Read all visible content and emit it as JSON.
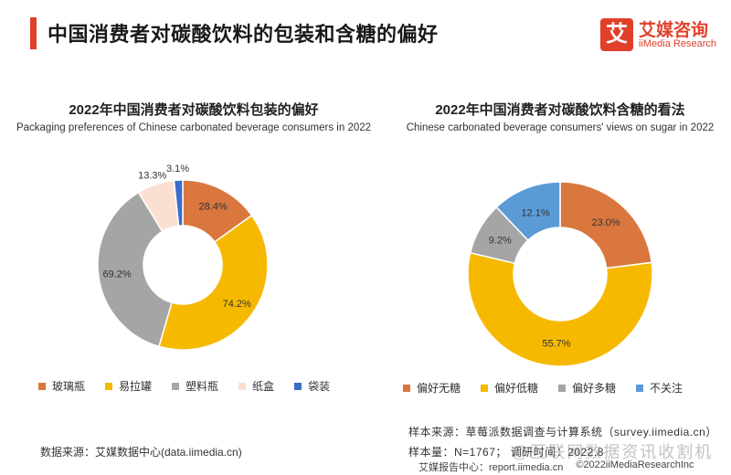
{
  "header": {
    "title": "中国消费者对碳酸饮料的包装和含糖的偏好",
    "brand_icon": "艾",
    "brand_cn": "艾媒咨询",
    "brand_en": "iiMedia Research"
  },
  "chart_data": [
    {
      "type": "pie",
      "title": "2022年中国消费者对碳酸饮料包装的偏好",
      "subtitle": "Packaging preferences of Chinese carbonated beverage consumers in 2022",
      "donut": true,
      "labels": [
        "玻璃瓶",
        "易拉罐",
        "塑料瓶",
        "纸盒",
        "袋装"
      ],
      "values": [
        28.4,
        74.2,
        69.2,
        13.3,
        3.1
      ],
      "value_labels": [
        "28.4%",
        "74.2%",
        "69.2%",
        "13.3%",
        "3.1%"
      ],
      "colors": [
        "#d9773e",
        "#f6b900",
        "#a5a5a5",
        "#fbe0d2",
        "#3c6cc9"
      ],
      "legend": "bottom"
    },
    {
      "type": "pie",
      "title": "2022年中国消费者对碳酸饮料含糖的看法",
      "subtitle": "Chinese carbonated beverage consumers' views on sugar in 2022",
      "donut": true,
      "labels": [
        "偏好无糖",
        "偏好低糖",
        "偏好多糖",
        "不关注"
      ],
      "values": [
        23.0,
        55.7,
        9.2,
        12.1
      ],
      "value_labels": [
        "23.0%",
        "55.7%",
        "9.2%",
        "12.1%"
      ],
      "colors": [
        "#d9773e",
        "#f6b900",
        "#a5a5a5",
        "#5b9bd5"
      ],
      "legend": "bottom"
    }
  ],
  "sources": {
    "data_source": "数据来源：艾媒数据中心(data.iimedia.cn)",
    "sample_source": "样本来源：草莓派数据调查与计算系统（survey.iimedia.cn）",
    "sample_size": "样本量：N=1767；  调研时间：2022.8"
  },
  "footer": {
    "report_center": "艾媒报告中心：report.iimedia.cn",
    "copyright": "©2022iiMediaResearchInc"
  },
  "watermark": "@互联网数据资讯收割机"
}
